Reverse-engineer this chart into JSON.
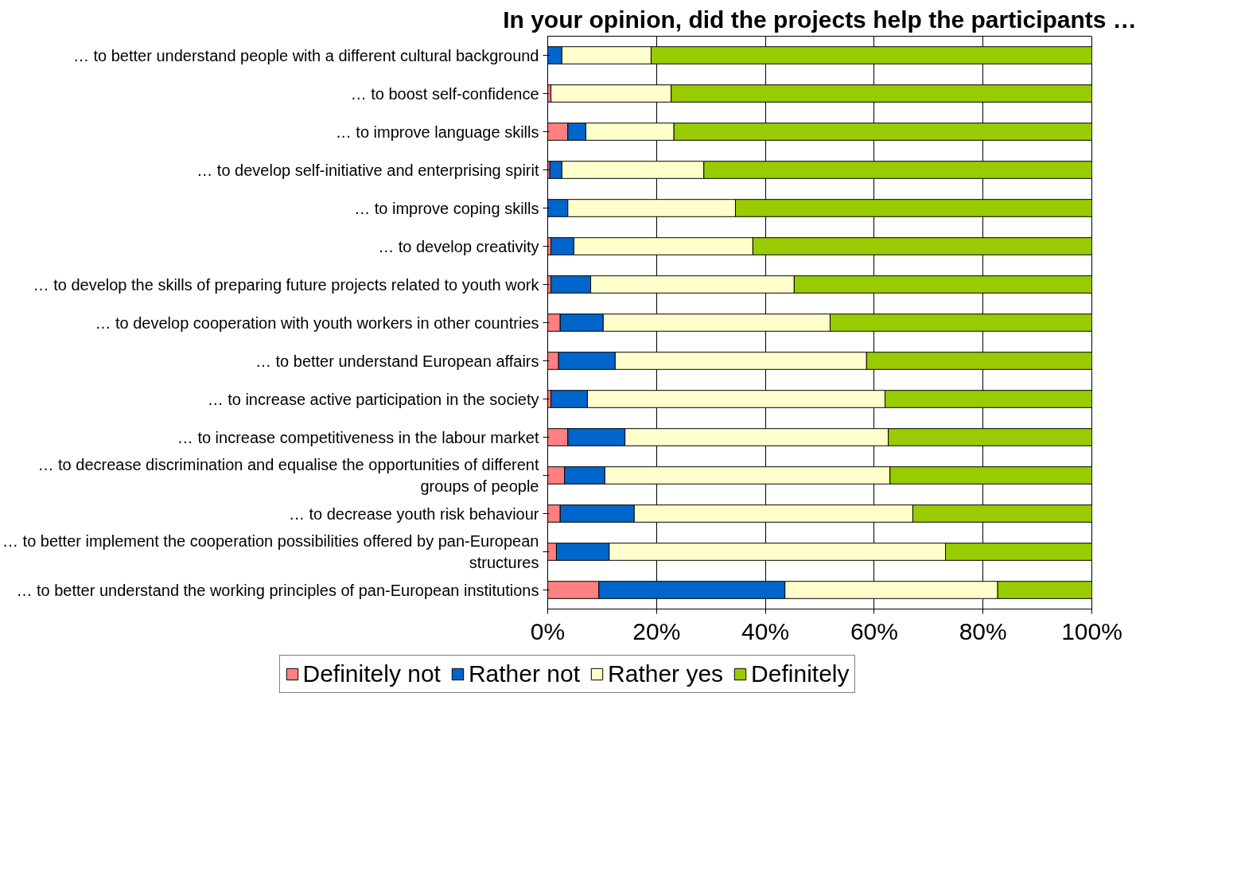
{
  "chart_data": {
    "type": "bar",
    "orientation": "horizontal",
    "stacked": true,
    "title": "In your opinion, did the projects help the participants …",
    "categories": [
      "… to better understand people with a different cultural background",
      "… to boost self-confidence",
      "… to improve language skills",
      "… to develop self-initiative and enterprising spirit",
      "… to improve coping skills",
      "… to develop creativity",
      "… to develop the skills of preparing future projects related to youth work",
      "… to develop cooperation with youth workers in other countries",
      "… to better understand European affairs",
      "… to increase active participation in the society",
      "… to increase competitiveness in the labour market",
      "… to decrease discrimination and equalise the opportunities of different groups of people",
      "… to decrease youth risk behaviour",
      "… to better implement the cooperation possibilities offered by pan-European structures",
      "… to better understand the working principles of pan-European institutions"
    ],
    "series": [
      {
        "name": "Definitely not",
        "color": "#ff8080",
        "values": [
          0,
          0.6,
          3.7,
          0.4,
          0,
          0.6,
          0.6,
          2.3,
          2.0,
          0.6,
          3.7,
          3.1,
          2.3,
          1.6,
          9.4
        ]
      },
      {
        "name": "Rather not",
        "color": "#0066cc",
        "values": [
          2.6,
          0,
          3.3,
          2.2,
          3.7,
          4.2,
          7.3,
          7.9,
          10.4,
          6.7,
          10.5,
          7.4,
          13.6,
          9.7,
          34.2
        ]
      },
      {
        "name": "Rather yes",
        "color": "#ffffcc",
        "values": [
          16.4,
          22.1,
          16.2,
          26.1,
          30.8,
          32.9,
          37.4,
          41.7,
          46.2,
          54.7,
          48.4,
          52.4,
          51.2,
          61.8,
          39.1
        ]
      },
      {
        "name": "Definitely",
        "color": "#99cc00",
        "values": [
          81.0,
          77.3,
          76.8,
          71.3,
          65.5,
          62.3,
          54.7,
          48.1,
          41.4,
          38.0,
          37.4,
          37.1,
          32.9,
          26.9,
          17.3
        ]
      }
    ],
    "xlim": [
      0,
      100
    ],
    "xticks": [
      {
        "value": 0,
        "label": "0%"
      },
      {
        "value": 20,
        "label": "20%"
      },
      {
        "value": 40,
        "label": "40%"
      },
      {
        "value": 60,
        "label": "60%"
      },
      {
        "value": 80,
        "label": "80%"
      },
      {
        "value": 100,
        "label": "100%"
      }
    ],
    "grid": "x",
    "legend": "bottom"
  }
}
